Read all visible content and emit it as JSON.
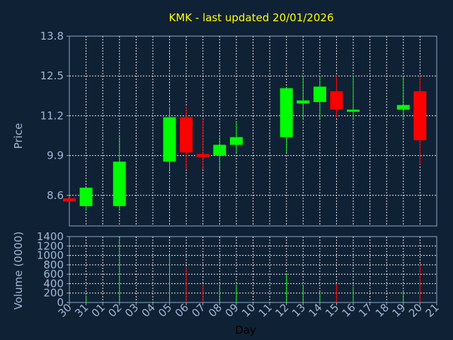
{
  "chart_data": {
    "type": "candlestick",
    "title": "KMK - last updated 20/01/2026",
    "xlabel": "Day",
    "price_ylabel": "Price",
    "volume_ylabel": "Volume (0000)",
    "categories": [
      "30",
      "31",
      "01",
      "02",
      "03",
      "04",
      "05",
      "06",
      "07",
      "08",
      "09",
      "10",
      "11",
      "12",
      "13",
      "14",
      "15",
      "16",
      "17",
      "18",
      "19",
      "20",
      "21"
    ],
    "price_ylim": [
      7.6,
      13.8
    ],
    "price_ticks": [
      "13.8",
      "12.5",
      "11.2",
      "9.9",
      "8.6"
    ],
    "volume_ylim": [
      0,
      1400
    ],
    "volume_ticks": [
      "1400",
      "1200",
      "1000",
      "800",
      "600",
      "400",
      "200",
      "0"
    ],
    "grid": true,
    "candles": [
      {
        "day": "30",
        "open": 8.5,
        "close": 8.4,
        "high": 8.5,
        "low": 8.4,
        "volume": 0
      },
      {
        "day": "31",
        "open": 8.25,
        "close": 8.85,
        "high": 8.85,
        "low": 8.1,
        "volume": 150
      },
      {
        "day": "02",
        "open": 8.25,
        "close": 9.7,
        "high": 10.5,
        "low": 8.1,
        "volume": 1380
      },
      {
        "day": "05",
        "open": 9.7,
        "close": 11.15,
        "high": 11.5,
        "low": 9.45,
        "volume": 1000
      },
      {
        "day": "06",
        "open": 11.15,
        "close": 10.0,
        "high": 11.5,
        "low": 9.45,
        "volume": 750
      },
      {
        "day": "07",
        "open": 9.95,
        "close": 9.85,
        "high": 11.1,
        "low": 9.45,
        "volume": 380
      },
      {
        "day": "08",
        "open": 9.9,
        "close": 10.25,
        "high": 10.5,
        "low": 9.45,
        "volume": 340
      },
      {
        "day": "09",
        "open": 10.25,
        "close": 10.5,
        "high": 11.0,
        "low": 10.0,
        "volume": 370
      },
      {
        "day": "12",
        "open": 10.5,
        "close": 12.1,
        "high": 12.1,
        "low": 10.0,
        "volume": 600
      },
      {
        "day": "13",
        "open": 11.6,
        "close": 11.7,
        "high": 12.5,
        "low": 11.1,
        "volume": 380
      },
      {
        "day": "14",
        "open": 11.65,
        "close": 12.15,
        "high": 12.5,
        "low": 11.1,
        "volume": 230
      },
      {
        "day": "15",
        "open": 12.0,
        "close": 11.4,
        "high": 12.5,
        "low": 11.15,
        "volume": 400
      },
      {
        "day": "16",
        "open": 11.35,
        "close": 11.4,
        "high": 12.5,
        "low": 11.1,
        "volume": 330
      },
      {
        "day": "19",
        "open": 11.4,
        "close": 11.55,
        "high": 12.5,
        "low": 11.1,
        "volume": 260
      },
      {
        "day": "20",
        "open": 12.0,
        "close": 10.4,
        "high": 12.5,
        "low": 9.6,
        "volume": 820
      }
    ]
  },
  "colors": {
    "background": "#0f2135",
    "up": "#00ff00",
    "down": "#ff0000",
    "title": "#ffff00",
    "axis_text": "#9fb8d3",
    "day_labels": "#000000"
  }
}
